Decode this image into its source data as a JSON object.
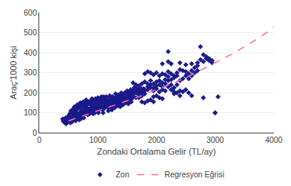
{
  "chart_data": {
    "type": "scatter",
    "xlabel": "Zondaki Ortalama Gelir (TL/ay)",
    "ylabel": "Araç'1000 kişi",
    "xlim": [
      0,
      4000
    ],
    "ylim": [
      0,
      600
    ],
    "xticks": [
      0,
      1000,
      2000,
      3000,
      4000
    ],
    "yticks": [
      0,
      100,
      200,
      300,
      400,
      500,
      600
    ],
    "grid": "y",
    "legend": "bottom",
    "series": [
      {
        "name": "Zon",
        "type": "scatter",
        "marker": "diamond",
        "color": "#1a1a8c",
        "x": [
          400,
          410,
          420,
          430,
          440,
          450,
          460,
          470,
          480,
          490,
          500,
          510,
          520,
          530,
          540,
          550,
          560,
          570,
          580,
          590,
          600,
          610,
          620,
          630,
          640,
          650,
          660,
          670,
          680,
          690,
          700,
          710,
          720,
          730,
          740,
          750,
          760,
          770,
          780,
          790,
          800,
          810,
          820,
          830,
          840,
          850,
          860,
          870,
          880,
          890,
          900,
          910,
          920,
          930,
          940,
          950,
          960,
          970,
          980,
          990,
          1000,
          1010,
          1020,
          1030,
          1040,
          1050,
          1060,
          1070,
          1080,
          1090,
          1100,
          1110,
          1120,
          1130,
          1140,
          1150,
          1160,
          1170,
          1180,
          1190,
          1200,
          1210,
          1220,
          1230,
          1240,
          1250,
          1260,
          1270,
          1280,
          1290,
          1300,
          1310,
          1320,
          1330,
          1340,
          1350,
          1360,
          1370,
          1380,
          1390,
          1400,
          1410,
          1420,
          1430,
          1440,
          1450,
          1460,
          1470,
          1480,
          1490,
          1500,
          1510,
          1520,
          1530,
          1540,
          1550,
          1560,
          1570,
          1580,
          500,
          520,
          540,
          560,
          580,
          600,
          620,
          640,
          660,
          680,
          700,
          720,
          740,
          760,
          780,
          800,
          820,
          840,
          860,
          880,
          900,
          920,
          940,
          960,
          980,
          1000,
          1020,
          1040,
          1060,
          1080,
          1100,
          1120,
          1140,
          1160,
          1180,
          1200,
          1220,
          1240,
          1260,
          1280,
          1300,
          1320,
          1340,
          1360,
          1380,
          1400,
          1420,
          1440,
          1460,
          1480,
          1500,
          1520,
          1540,
          1560,
          1580,
          1600,
          1620,
          1640,
          1660,
          1680,
          1700,
          1720,
          1740,
          1760,
          1780,
          1800,
          600,
          650,
          700,
          750,
          800,
          850,
          900,
          950,
          1000,
          1050,
          1100,
          1150,
          1200,
          1250,
          1300,
          1350,
          1400,
          1450,
          1500,
          1550,
          1600,
          1650,
          1700,
          1750,
          1800,
          1850,
          1900,
          1950,
          2000,
          2050,
          2100,
          2150,
          2200,
          2250,
          2300,
          2350,
          2400,
          2450,
          2500,
          2550,
          2600,
          2650,
          2700,
          1600,
          1650,
          1700,
          1750,
          1800,
          1850,
          1900,
          1950,
          2000,
          2050,
          2100,
          2150,
          2200,
          2250,
          2300,
          1600,
          1650,
          1700,
          1750,
          1800,
          1850,
          1900,
          1950,
          2000,
          2050,
          2100,
          2150,
          2200,
          2250,
          2300,
          2350,
          1800,
          1850,
          1900,
          1950,
          2000,
          2050,
          2100,
          2150,
          2200,
          2250,
          2300,
          2350,
          2400,
          2450,
          2500,
          2550,
          2600,
          2650,
          2700,
          2750,
          2800,
          2850,
          2900,
          2950,
          2400,
          2500,
          2600,
          2700,
          2750,
          2800,
          2850,
          2900,
          2950,
          3000,
          2200,
          2250,
          2300,
          2350,
          2400,
          2450,
          2500,
          2550,
          2200,
          2100,
          2000,
          2050,
          2100,
          1950,
          2400,
          2600,
          2800,
          3050,
          3000,
          1750,
          1800,
          1850,
          1900,
          1950
        ],
        "values": [
          70,
          60,
          55,
          65,
          50,
          75,
          45,
          60,
          65,
          55,
          70,
          80,
          60,
          50,
          75,
          65,
          55,
          80,
          90,
          70,
          85,
          75,
          60,
          90,
          100,
          85,
          75,
          90,
          65,
          100,
          80,
          70,
          110,
          95,
          85,
          100,
          75,
          120,
          110,
          95,
          130,
          115,
          100,
          90,
          120,
          105,
          95,
          110,
          125,
          140,
          120,
          105,
          95,
          130,
          115,
          100,
          145,
          130,
          115,
          125,
          140,
          100,
          115,
          130,
          120,
          135,
          150,
          130,
          115,
          100,
          120,
          135,
          150,
          130,
          145,
          160,
          140,
          125,
          110,
          130,
          145,
          160,
          140,
          125,
          115,
          130,
          145,
          160,
          140,
          125,
          140,
          155,
          170,
          150,
          135,
          150,
          165,
          145,
          130,
          145,
          160,
          175,
          155,
          140,
          155,
          170,
          185,
          165,
          150,
          165,
          180,
          160,
          145,
          160,
          175,
          190,
          170,
          155,
          170,
          85,
          95,
          110,
          100,
          120,
          105,
          115,
          130,
          120,
          135,
          125,
          140,
          130,
          145,
          135,
          150,
          140,
          155,
          145,
          160,
          150,
          165,
          155,
          170,
          160,
          160,
          150,
          165,
          180,
          160,
          150,
          165,
          180,
          160,
          150,
          165,
          180,
          160,
          175,
          160,
          175,
          190,
          170,
          185,
          170,
          185,
          170,
          185,
          200,
          185,
          200,
          185,
          200,
          215,
          195,
          210,
          225,
          205,
          220,
          205,
          220,
          205,
          220,
          205,
          220,
          210,
          130,
          140,
          150,
          155,
          165,
          155,
          170,
          165,
          175,
          170,
          180,
          175,
          185,
          180,
          195,
          190,
          200,
          195,
          210,
          205,
          190,
          200,
          190,
          200,
          215,
          230,
          240,
          225,
          235,
          240,
          230,
          245,
          260,
          240,
          225,
          240,
          260,
          270,
          285,
          270,
          285,
          300,
          310,
          180,
          175,
          175,
          185,
          195,
          215,
          225,
          210,
          220,
          205,
          215,
          210,
          230,
          215,
          205,
          250,
          240,
          235,
          245,
          255,
          245,
          260,
          245,
          255,
          260,
          250,
          265,
          280,
          265,
          275,
          285,
          295,
          305,
          300,
          290,
          300,
          285,
          295,
          290,
          305,
          295,
          285,
          300,
          315,
          310,
          305,
          295,
          310,
          325,
          350,
          365,
          355,
          370,
          360,
          350,
          350,
          340,
          345,
          335,
          430,
          390,
          380,
          370,
          360,
          100,
          405,
          345,
          195,
          200,
          210,
          205,
          215,
          200,
          355,
          345,
          185,
          175,
          170,
          180,
          185,
          185,
          175,
          180,
          100,
          155,
          150,
          160,
          165,
          155
        ]
      },
      {
        "name": "Regresyon Eğrisi",
        "type": "line",
        "line_style": "dashed",
        "color": "#FF69B4",
        "x": [
          500,
          700,
          900,
          1100,
          1300,
          1500,
          1700,
          1900,
          2100,
          2300,
          2500,
          2700,
          2900,
          3100,
          3300,
          3500,
          3700,
          3900,
          4000
        ],
        "values": [
          60,
          80,
          100,
          120,
          140,
          160,
          180,
          205,
          225,
          250,
          275,
          305,
          335,
          365,
          395,
          430,
          465,
          505,
          530
        ]
      }
    ]
  }
}
